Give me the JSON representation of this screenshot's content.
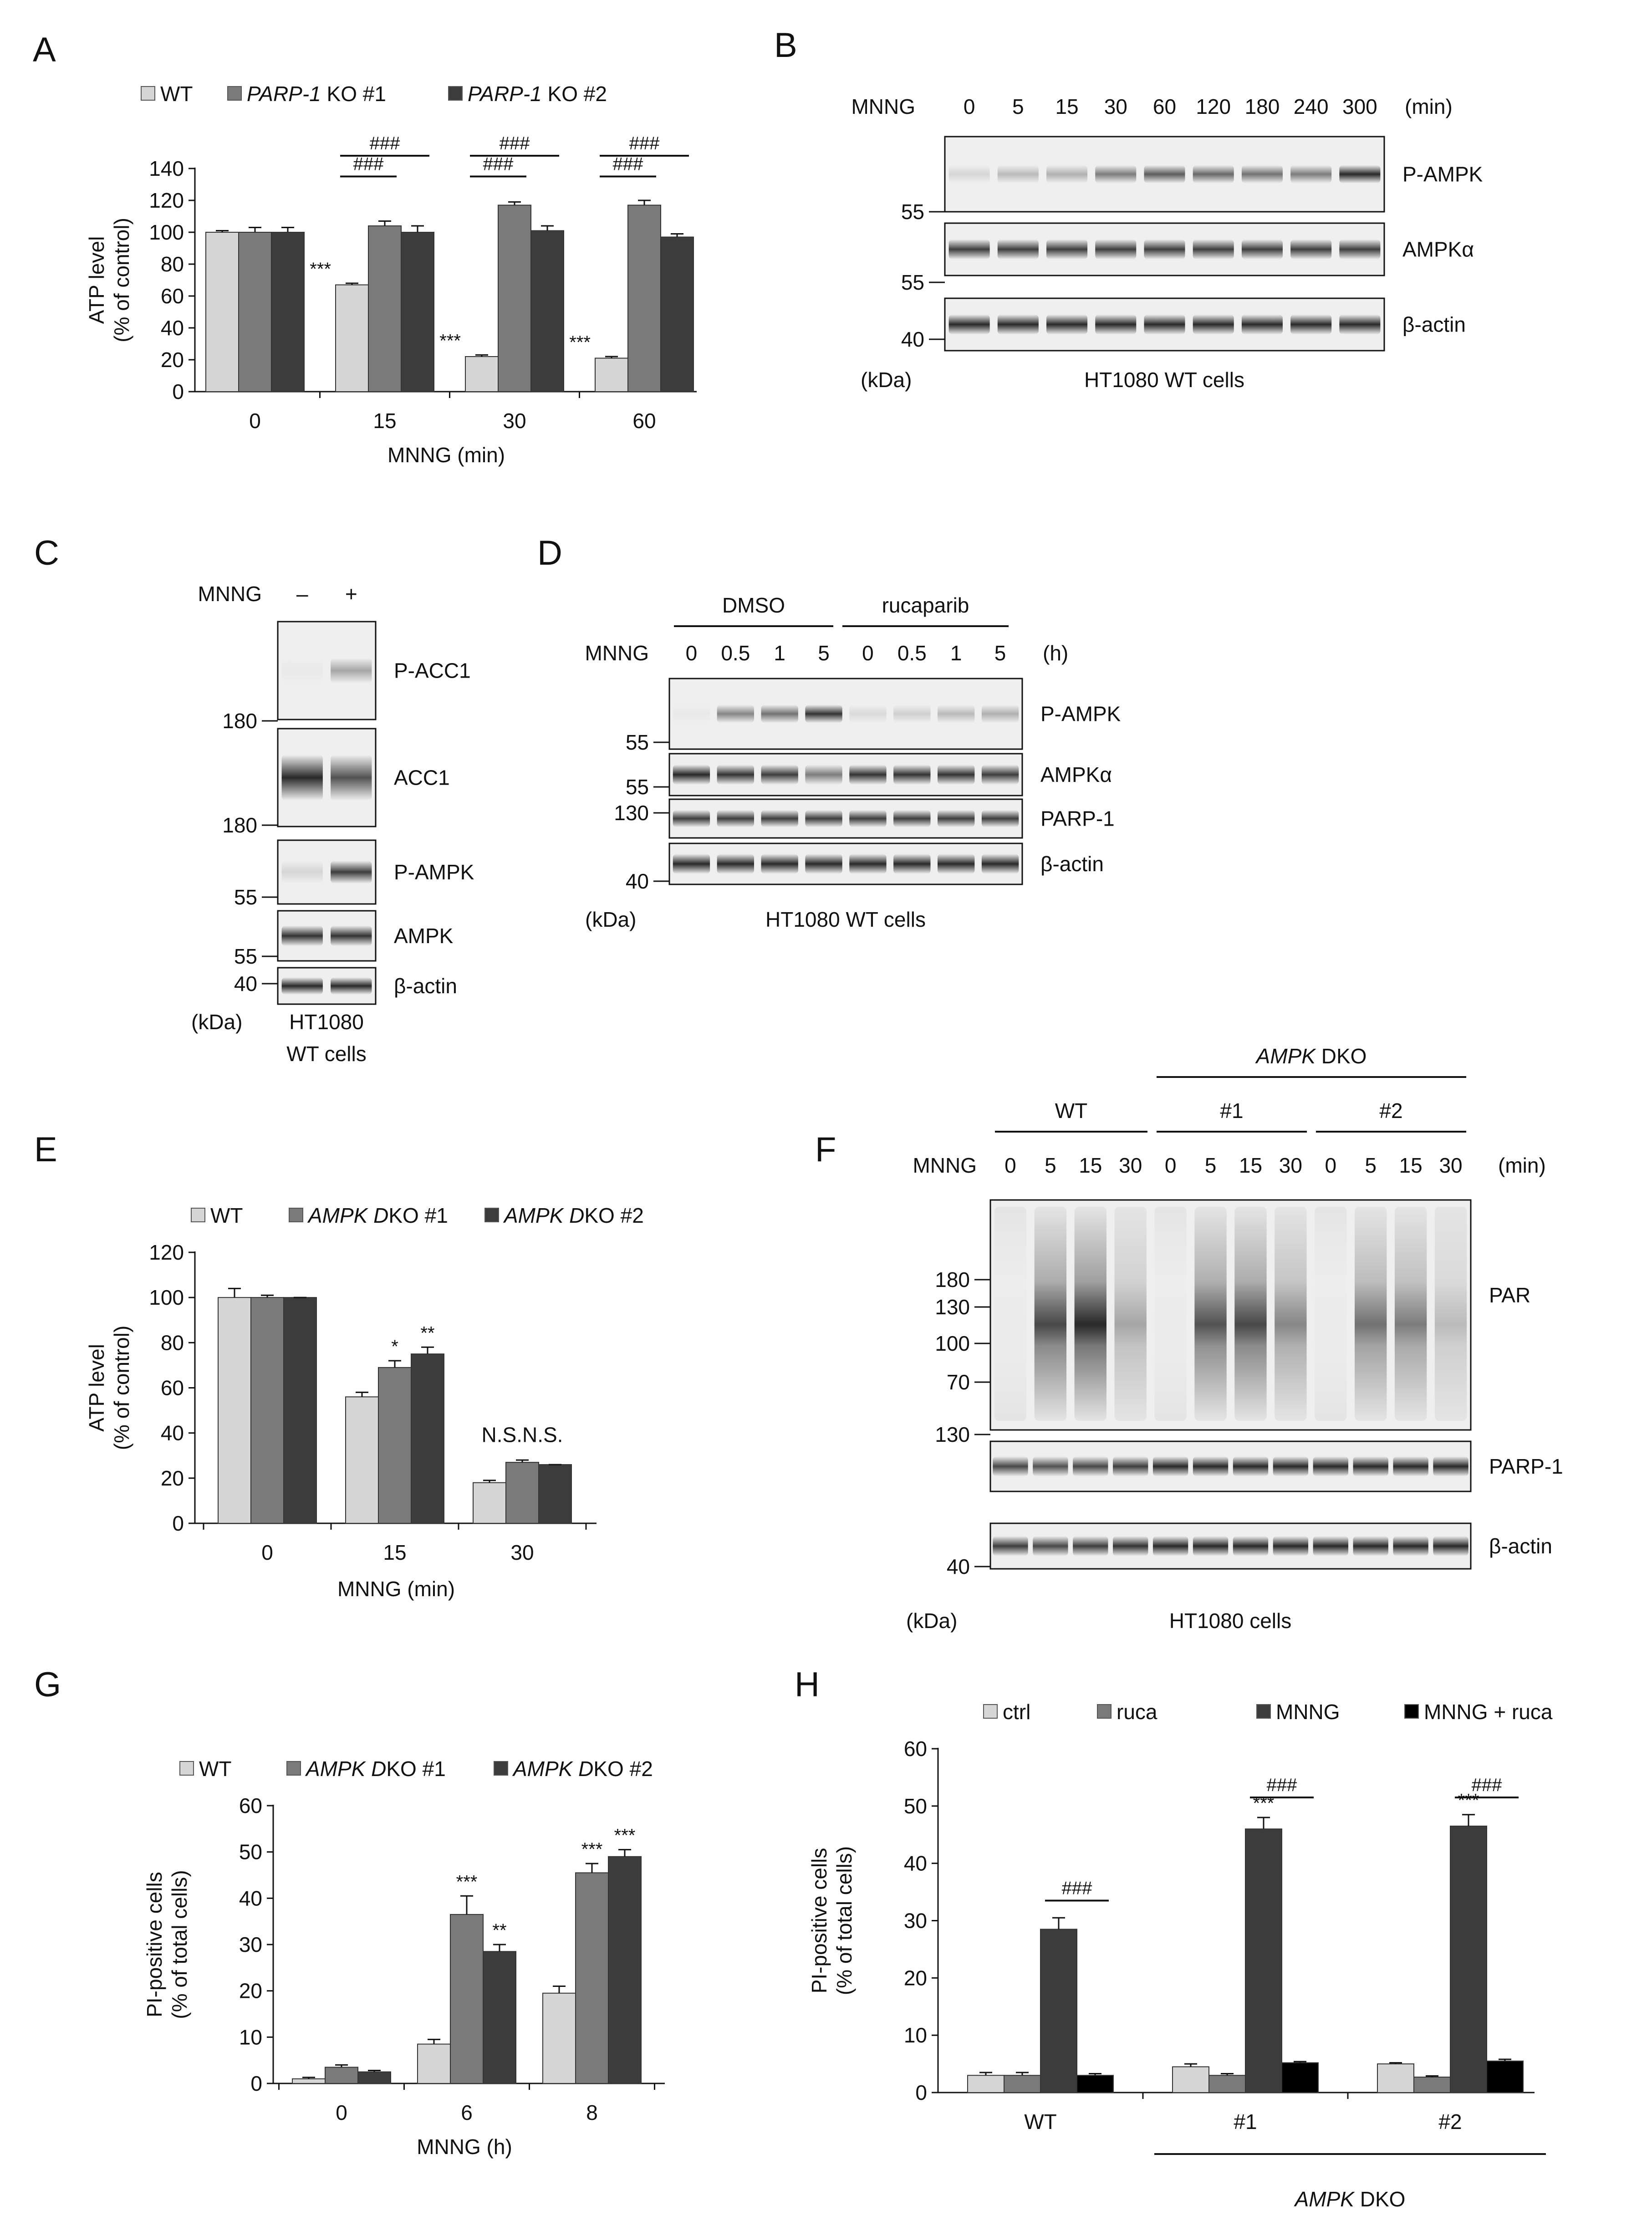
{
  "colors": {
    "wt": "#d6d6d6",
    "mid": "#7a7a7a",
    "dark": "#3c3c3c",
    "black": "#000000",
    "axis": "#111111",
    "blot_bg": "#efefef",
    "band": "#1e1e1e"
  },
  "chart_data": [
    {
      "panel": "A",
      "type": "bar",
      "categories": [
        "0",
        "15",
        "30",
        "60"
      ],
      "series": [
        {
          "name_prefix": "WT",
          "name_italic": "",
          "name_suffix": "",
          "color": "wt",
          "values": [
            100,
            67,
            22,
            21
          ],
          "errors": [
            1,
            1,
            1,
            1
          ]
        },
        {
          "name_prefix": "",
          "name_italic": "PARP-1",
          "name_suffix": " KO #1",
          "color": "mid",
          "values": [
            100,
            104,
            117,
            117
          ],
          "errors": [
            3,
            3,
            2,
            3
          ]
        },
        {
          "name_prefix": "",
          "name_italic": "PARP-1",
          "name_suffix": " KO #2",
          "color": "dark",
          "values": [
            100,
            100,
            101,
            97
          ],
          "errors": [
            3,
            4,
            3,
            2
          ]
        }
      ],
      "stars": [
        {
          "cat": 1,
          "s": 0,
          "text": "***"
        },
        {
          "cat": 2,
          "s": 0,
          "text": "***"
        },
        {
          "cat": 3,
          "s": 0,
          "text": "***"
        }
      ],
      "hashes": [
        {
          "cat": 1,
          "from": 0,
          "to": 1,
          "level": 135,
          "text": "###"
        },
        {
          "cat": 1,
          "from": 0,
          "to": 2,
          "level": 148,
          "text": "###"
        },
        {
          "cat": 2,
          "from": 0,
          "to": 1,
          "level": 135,
          "text": "###"
        },
        {
          "cat": 2,
          "from": 0,
          "to": 2,
          "level": 148,
          "text": "###"
        },
        {
          "cat": 3,
          "from": 0,
          "to": 1,
          "level": 135,
          "text": "###"
        },
        {
          "cat": 3,
          "from": 0,
          "to": 2,
          "level": 148,
          "text": "###"
        }
      ],
      "ylim": [
        0,
        140
      ],
      "yticks": [
        0,
        20,
        40,
        60,
        80,
        100,
        120,
        140
      ],
      "ylabel_line1": "ATP level",
      "ylabel_line2": "(% of control)",
      "xlabel": "MNNG (min)"
    },
    {
      "panel": "E",
      "type": "bar",
      "categories": [
        "0",
        "15",
        "30"
      ],
      "series": [
        {
          "name_prefix": "WT",
          "name_italic": "",
          "name_suffix": "",
          "color": "wt",
          "values": [
            100,
            56,
            18
          ],
          "errors": [
            4,
            2,
            1
          ]
        },
        {
          "name_prefix": "",
          "name_italic": "AMPK D",
          "name_suffix": "KO #1",
          "color": "mid",
          "values": [
            100,
            69,
            27
          ],
          "errors": [
            1,
            3,
            1
          ]
        },
        {
          "name_prefix": "",
          "name_italic": "AMPK D",
          "name_suffix": "KO #2",
          "color": "dark",
          "values": [
            100,
            75,
            26
          ],
          "errors": [
            0,
            3,
            0
          ]
        }
      ],
      "stars": [
        {
          "cat": 1,
          "s": 1,
          "text": "*"
        },
        {
          "cat": 1,
          "s": 2,
          "text": "**"
        }
      ],
      "ns_label": "N.S.N.S.",
      "hashes": [],
      "ylim": [
        0,
        120
      ],
      "yticks": [
        0,
        20,
        40,
        60,
        80,
        100,
        120
      ],
      "ylabel_line1": "ATP level",
      "ylabel_line2": "(% of control)",
      "xlabel": "MNNG (min)"
    },
    {
      "panel": "G",
      "type": "bar",
      "categories": [
        "0",
        "6",
        "8"
      ],
      "series": [
        {
          "name_prefix": "WT",
          "name_italic": "",
          "name_suffix": "",
          "color": "wt",
          "values": [
            1,
            8.5,
            19.5
          ],
          "errors": [
            0.3,
            1,
            1.5
          ]
        },
        {
          "name_prefix": "",
          "name_italic": "AMPK D",
          "name_suffix": "KO #1",
          "color": "mid",
          "values": [
            3.5,
            36.5,
            45.5
          ],
          "errors": [
            0.5,
            4,
            2
          ]
        },
        {
          "name_prefix": "",
          "name_italic": "AMPK D",
          "name_suffix": "KO #2",
          "color": "dark",
          "values": [
            2.5,
            28.5,
            49
          ],
          "errors": [
            0.3,
            1.5,
            1.5
          ]
        }
      ],
      "stars": [
        {
          "cat": 1,
          "s": 1,
          "text": "***"
        },
        {
          "cat": 1,
          "s": 2,
          "text": "**"
        },
        {
          "cat": 2,
          "s": 1,
          "text": "***"
        },
        {
          "cat": 2,
          "s": 2,
          "text": "***"
        }
      ],
      "hashes": [],
      "ylim": [
        0,
        60
      ],
      "yticks": [
        0,
        10,
        20,
        30,
        40,
        50,
        60
      ],
      "ylabel_line1": "PI-positive cells",
      "ylabel_line2": "(% of total cells)",
      "xlabel": "MNNG (h)"
    },
    {
      "panel": "H",
      "type": "bar",
      "categories": [
        "WT",
        "#1",
        "#2"
      ],
      "series": [
        {
          "name_prefix": "ctrl",
          "name_italic": "",
          "name_suffix": "",
          "color": "wt",
          "values": [
            3,
            4.5,
            5
          ],
          "errors": [
            0.5,
            0.5,
            0.2
          ]
        },
        {
          "name_prefix": "ruca",
          "name_italic": "",
          "name_suffix": "",
          "color": "mid",
          "values": [
            3,
            3,
            2.7
          ],
          "errors": [
            0.5,
            0.3,
            0.2
          ]
        },
        {
          "name_prefix": "MNNG",
          "name_italic": "",
          "name_suffix": "",
          "color": "dark",
          "values": [
            28.5,
            46,
            46.5
          ],
          "errors": [
            2,
            2,
            2
          ]
        },
        {
          "name_prefix": "MNNG + ruca",
          "name_italic": "",
          "name_suffix": "",
          "color": "black",
          "values": [
            3,
            5.2,
            5.5
          ],
          "errors": [
            0.3,
            0.2,
            0.3
          ]
        }
      ],
      "stars": [
        {
          "cat": 1,
          "s": 2,
          "text": "***"
        },
        {
          "cat": 2,
          "s": 2,
          "text": "***"
        }
      ],
      "hashes": [
        {
          "cat": 0,
          "from": 2,
          "to": 3,
          "level": 33.5,
          "text": "###"
        },
        {
          "cat": 1,
          "from": 2,
          "to": 3,
          "level": 51.5,
          "text": "###"
        },
        {
          "cat": 2,
          "from": 2,
          "to": 3,
          "level": 51.5,
          "text": "###"
        }
      ],
      "group_label_italic": "AMPK",
      "group_label_rest": " DKO",
      "ylim": [
        0,
        60
      ],
      "yticks": [
        0,
        10,
        20,
        30,
        40,
        50,
        60
      ],
      "ylabel_line1": "PI-positive cells",
      "ylabel_line2": "(% of total cells)",
      "xlabel": ""
    }
  ],
  "blots": {
    "B": {
      "treatment": "MNNG",
      "unit": "(min)",
      "lanes": [
        "0",
        "5",
        "15",
        "30",
        "60",
        "120",
        "180",
        "240",
        "300"
      ],
      "rows": [
        {
          "label": "P-AMPK",
          "marker": "55",
          "intensity": [
            0.12,
            0.25,
            0.3,
            0.55,
            0.7,
            0.65,
            0.6,
            0.55,
            0.95
          ]
        },
        {
          "label": "AMPKα",
          "marker": "55",
          "intensity": [
            0.85,
            0.85,
            0.85,
            0.85,
            0.85,
            0.85,
            0.85,
            0.85,
            0.85
          ]
        },
        {
          "label": "β-actin",
          "marker": "40",
          "intensity": [
            0.95,
            0.95,
            0.95,
            0.95,
            0.95,
            0.95,
            0.95,
            0.95,
            0.95
          ]
        }
      ],
      "kda": "(kDa)",
      "caption": "HT1080 WT cells"
    },
    "C": {
      "treatment": "MNNG",
      "lanes": [
        "–",
        "+"
      ],
      "rows": [
        {
          "label": "P-ACC1",
          "marker": "180",
          "intensity": [
            0.03,
            0.35
          ]
        },
        {
          "label": "ACC1",
          "marker": "180",
          "intensity": [
            0.95,
            0.75
          ]
        },
        {
          "label": "P-AMPK",
          "marker": "55",
          "intensity": [
            0.12,
            0.85
          ]
        },
        {
          "label": "AMPK",
          "marker": "55",
          "intensity": [
            0.9,
            0.9
          ]
        },
        {
          "label": "β-actin",
          "marker": "40",
          "intensity": [
            0.95,
            0.95
          ]
        }
      ],
      "kda": "(kDa)",
      "caption_line1": "HT1080",
      "caption_line2": "WT cells"
    },
    "D": {
      "groups": [
        "DMSO",
        "rucaparib"
      ],
      "treatment": "MNNG",
      "unit": "(h)",
      "lanes": [
        "0",
        "0.5",
        "1",
        "5",
        "0",
        "0.5",
        "1",
        "5"
      ],
      "rows": [
        {
          "label": "P-AMPK",
          "marker": "55",
          "intensity": [
            0.03,
            0.5,
            0.6,
            0.9,
            0.1,
            0.15,
            0.25,
            0.3
          ]
        },
        {
          "label": "AMPKα",
          "marker": "55",
          "intensity": [
            0.95,
            0.9,
            0.85,
            0.55,
            0.9,
            0.9,
            0.9,
            0.85
          ]
        },
        {
          "label": "PARP-1",
          "marker": "130",
          "intensity": [
            0.85,
            0.85,
            0.85,
            0.85,
            0.85,
            0.85,
            0.85,
            0.85
          ]
        },
        {
          "label": "β-actin",
          "marker": "40",
          "intensity": [
            0.95,
            0.95,
            0.95,
            0.95,
            0.95,
            0.95,
            0.95,
            0.95
          ]
        }
      ],
      "kda": "(kDa)",
      "caption": "HT1080 WT cells"
    },
    "F": {
      "top_group_italic": "AMPK",
      "top_group_rest": " DKO",
      "groups": [
        "WT",
        "#1",
        "#2"
      ],
      "treatment": "MNNG",
      "unit": "(min)",
      "lanes": [
        "0",
        "5",
        "15",
        "30",
        "0",
        "5",
        "15",
        "30",
        "0",
        "5",
        "15",
        "30"
      ],
      "par_markers": [
        "180",
        "130",
        "100",
        "70"
      ],
      "rows": [
        {
          "label": "PAR",
          "intensity": [
            0.02,
            0.8,
            0.95,
            0.35,
            0.02,
            0.75,
            0.8,
            0.5,
            0.02,
            0.6,
            0.55,
            0.25
          ]
        },
        {
          "label": "PARP-1",
          "marker": "130",
          "intensity": [
            0.8,
            0.75,
            0.8,
            0.85,
            0.95,
            0.95,
            0.95,
            0.95,
            0.95,
            0.95,
            0.95,
            0.95
          ]
        },
        {
          "label": "β-actin",
          "marker": "40",
          "intensity": [
            0.85,
            0.8,
            0.85,
            0.9,
            0.95,
            0.95,
            0.95,
            0.95,
            0.95,
            0.95,
            0.95,
            0.95
          ]
        }
      ],
      "kda": "(kDa)",
      "caption": "HT1080 cells"
    }
  },
  "panel_labels": [
    "A",
    "B",
    "C",
    "D",
    "E",
    "F",
    "G",
    "H"
  ]
}
